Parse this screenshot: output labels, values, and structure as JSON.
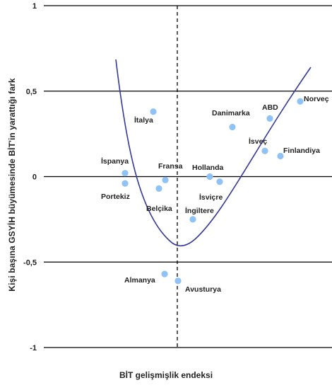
{
  "chart_data": {
    "type": "scatter",
    "title": "",
    "xlabel": "BİT gelişmişlik endeksi",
    "ylabel": "Kişi başına GSYİH büyümesinde BİT'in yarattığı fark",
    "ylim": [
      -1,
      1
    ],
    "yticks": [
      {
        "value": 1,
        "label": "1"
      },
      {
        "value": 0.5,
        "label": "0,5"
      },
      {
        "value": 0,
        "label": "0"
      },
      {
        "value": -0.5,
        "label": "-0,5"
      },
      {
        "value": -1,
        "label": "-1"
      }
    ],
    "grid": "horizontal",
    "vertical_reference_line": "dashed, center",
    "curve": "U-shaped fitted line",
    "point_color": "#8fc3f5",
    "curve_color": "#353a9a",
    "points": [
      {
        "label": "İtalya",
        "y": 0.38
      },
      {
        "label": "İspanya",
        "y": 0.02
      },
      {
        "label": "Portekiz",
        "y": -0.04
      },
      {
        "label": "Fransa",
        "y": -0.02
      },
      {
        "label": "Belçika",
        "y": -0.07
      },
      {
        "label": "Almanya",
        "y": -0.57
      },
      {
        "label": "Avusturya",
        "y": -0.61
      },
      {
        "label": "Hollanda",
        "y": 0.0
      },
      {
        "label": "İsviçre",
        "y": -0.03
      },
      {
        "label": "İngiltere",
        "y": -0.25
      },
      {
        "label": "Danimarka",
        "y": 0.29
      },
      {
        "label": "ABD",
        "y": 0.34
      },
      {
        "label": "İsveç",
        "y": 0.15
      },
      {
        "label": "Finlandiya",
        "y": 0.12
      },
      {
        "label": "Norveç",
        "y": 0.44
      }
    ]
  }
}
